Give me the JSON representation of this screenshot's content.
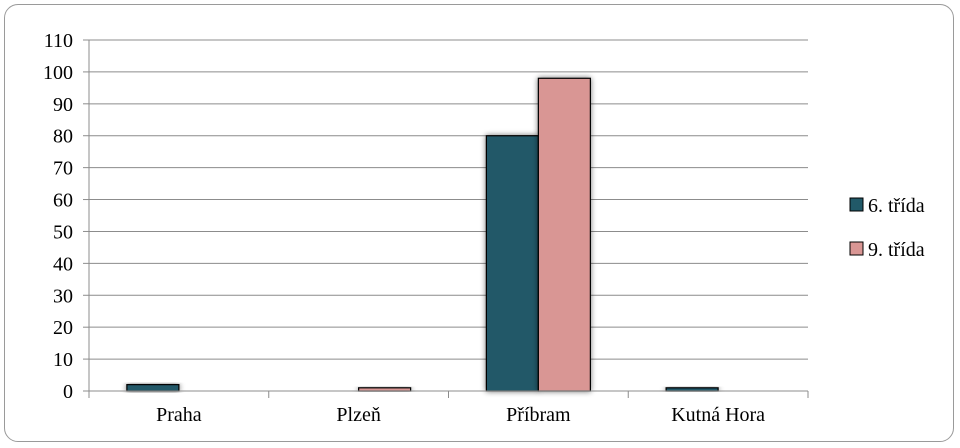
{
  "chart_data": {
    "type": "bar",
    "categories": [
      "Praha",
      "Plzeň",
      "Příbram",
      "Kutná Hora"
    ],
    "series": [
      {
        "name": "6. třída",
        "values": [
          2,
          0,
          80,
          1
        ],
        "color": "#215968"
      },
      {
        "name": "9. třída",
        "values": [
          0,
          1,
          98,
          0
        ],
        "color": "#d99694"
      }
    ],
    "ylim": [
      0,
      110
    ],
    "yticks": [
      0,
      10,
      20,
      30,
      40,
      50,
      60,
      70,
      80,
      90,
      100,
      110
    ],
    "grid": true,
    "legend_position": "right",
    "title": "",
    "xlabel": "",
    "ylabel": ""
  }
}
